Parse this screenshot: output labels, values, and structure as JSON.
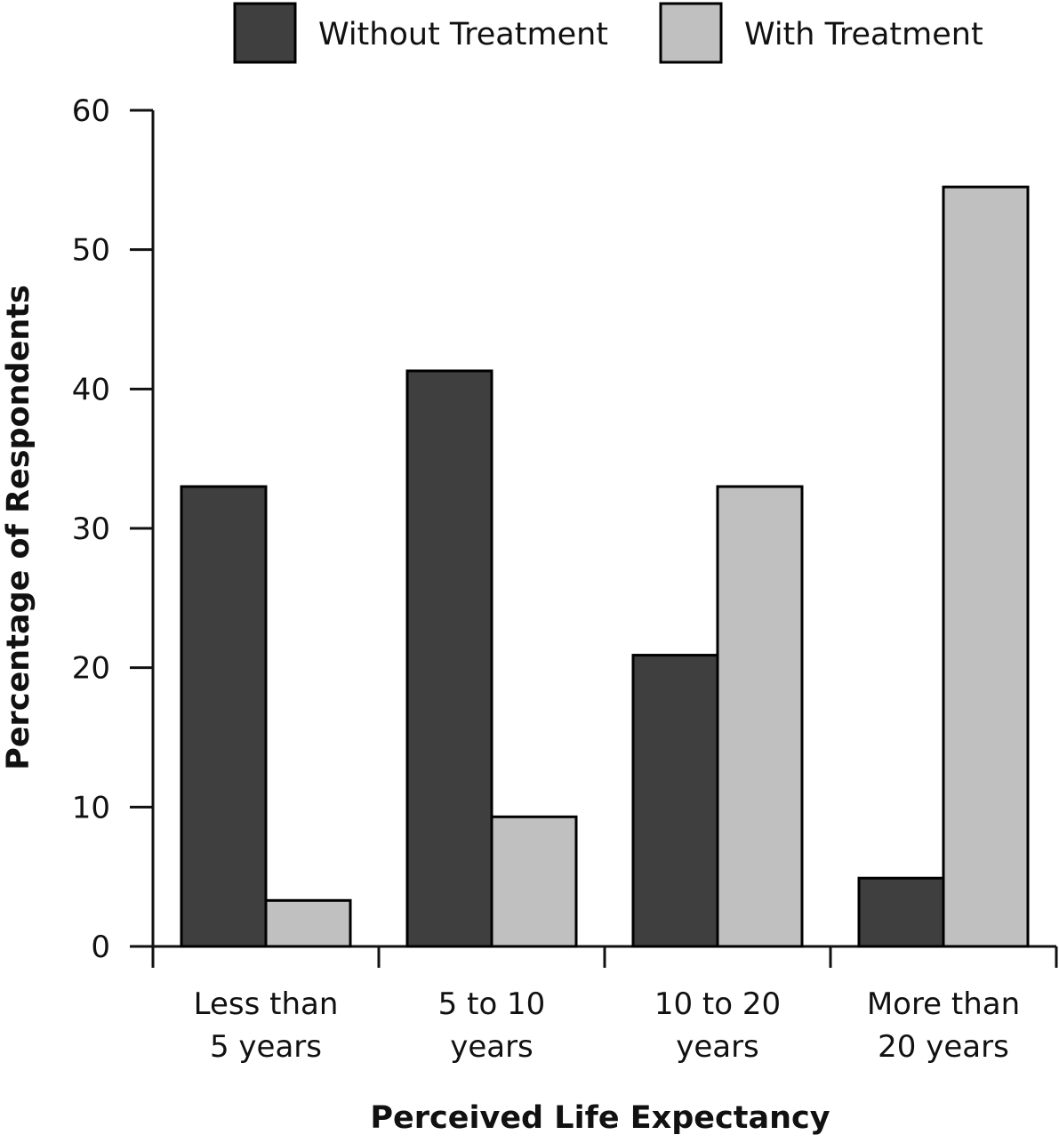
{
  "chart_data": {
    "type": "bar",
    "categories": [
      [
        "Less than",
        "5 years"
      ],
      [
        "5 to 10",
        "years"
      ],
      [
        "10 to 20",
        "years"
      ],
      [
        "More than",
        "20 years"
      ]
    ],
    "series": [
      {
        "name": "Without Treatment",
        "color": "#3f3f3f",
        "values": [
          33,
          41.3,
          20.9,
          4.9
        ]
      },
      {
        "name": "With Treatment",
        "color": "#c0c0c0",
        "values": [
          3.3,
          9.3,
          33,
          54.5
        ]
      }
    ],
    "xlabel": "Perceived Life Expectancy",
    "ylabel": "Percentage of Respondents",
    "ylim": [
      0,
      60
    ],
    "yticks": [
      "0",
      "10",
      "20",
      "30",
      "40",
      "50",
      "60"
    ],
    "legend_position": "top-center",
    "grid": false
  }
}
